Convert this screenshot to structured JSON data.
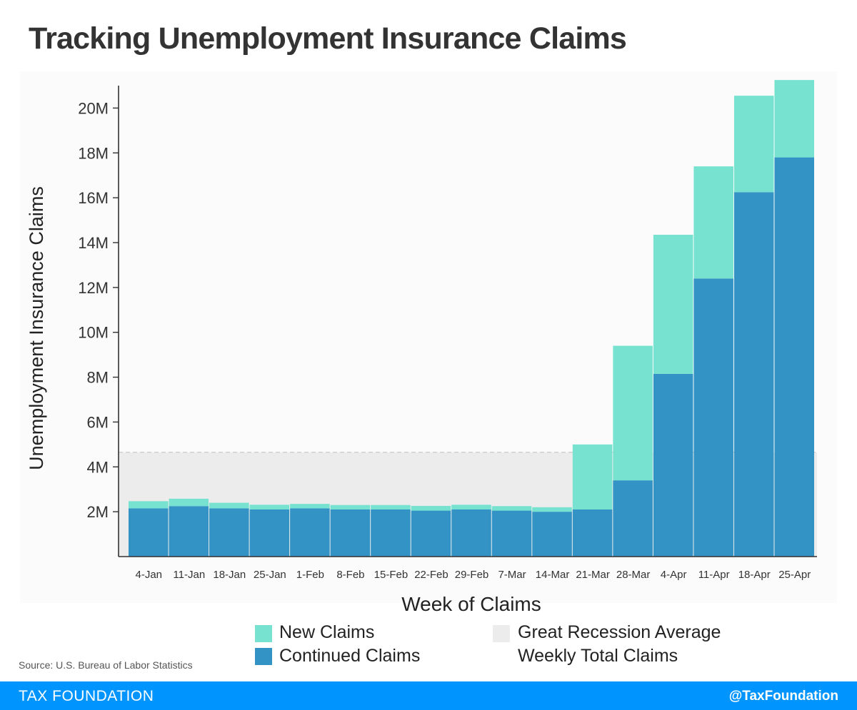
{
  "title": "Tracking Unemployment Insurance Claims",
  "source": "Source: U.S. Bureau of Labor Statistics",
  "footer": {
    "brand": "TAX FOUNDATION",
    "handle": "@TaxFoundation"
  },
  "legend": {
    "new": "New Claims",
    "continued": "Continued Claims",
    "recession_line1": "Great Recession Average",
    "recession_line2": "Weekly Total Claims"
  },
  "colors": {
    "new": "#76e2cf",
    "continued": "#3393c5",
    "recession": "#ececec",
    "footer": "#0094ff"
  },
  "chart_data": {
    "type": "bar",
    "stacked": true,
    "title": "",
    "xlabel": "Week of Claims",
    "ylabel": "Unemployment Insurance Claims",
    "ylim": [
      0,
      21000000
    ],
    "yticks": [
      2000000,
      4000000,
      6000000,
      8000000,
      10000000,
      12000000,
      14000000,
      16000000,
      18000000,
      20000000
    ],
    "ytick_labels": [
      "2M",
      "4M",
      "6M",
      "8M",
      "10M",
      "12M",
      "14M",
      "16M",
      "18M",
      "20M"
    ],
    "categories": [
      "4-Jan",
      "11-Jan",
      "18-Jan",
      "25-Jan",
      "1-Feb",
      "8-Feb",
      "15-Feb",
      "22-Feb",
      "29-Feb",
      "7-Mar",
      "14-Mar",
      "21-Mar",
      "28-Mar",
      "4-Apr",
      "11-Apr",
      "18-Apr",
      "25-Apr"
    ],
    "series": [
      {
        "name": "Continued Claims",
        "values": [
          2150000,
          2250000,
          2150000,
          2100000,
          2150000,
          2100000,
          2100000,
          2050000,
          2100000,
          2050000,
          2000000,
          2100000,
          3400000,
          8150000,
          12400000,
          16250000,
          17800000
        ]
      },
      {
        "name": "New Claims",
        "values": [
          320000,
          330000,
          250000,
          210000,
          200000,
          200000,
          200000,
          210000,
          210000,
          200000,
          200000,
          2900000,
          6000000,
          6200000,
          5000000,
          4300000,
          3450000
        ]
      }
    ],
    "reference_band": {
      "name": "Great Recession Average Weekly Total Claims",
      "value": 4650000
    },
    "legend_position": "bottom"
  }
}
